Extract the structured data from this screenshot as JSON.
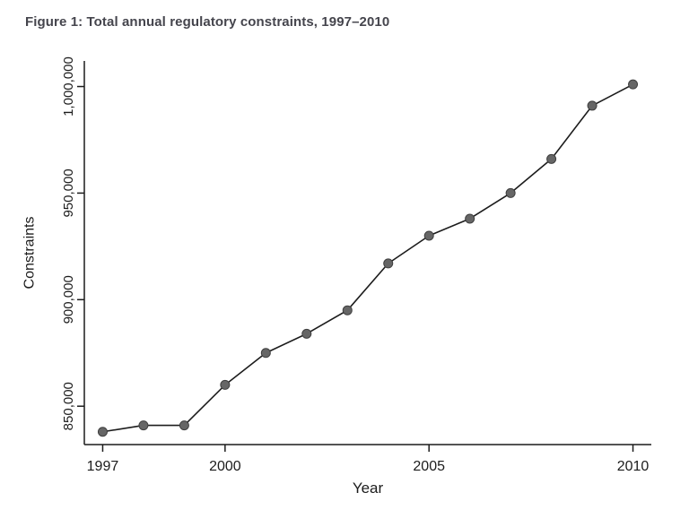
{
  "page": {
    "background": "#ffffff"
  },
  "chart_data": {
    "type": "line",
    "title": "Figure 1: Total annual regulatory constraints, 1997–2010",
    "xlabel": "Year",
    "ylabel": "Constraints",
    "series_name": "Total annual regulatory constraints",
    "x": [
      1997,
      1998,
      1999,
      2000,
      2001,
      2002,
      2003,
      2004,
      2005,
      2006,
      2007,
      2008,
      2009,
      2010
    ],
    "values": [
      838000,
      841000,
      841000,
      860000,
      875000,
      884000,
      895000,
      917000,
      930000,
      938000,
      950000,
      966000,
      991000,
      1001000
    ],
    "xlim": [
      1996.55,
      2010.45
    ],
    "ylim": [
      832000,
      1012000
    ],
    "xticks": [
      1997,
      2000,
      2005,
      2010
    ],
    "xtick_labels": [
      "1997",
      "2000",
      "2005",
      "2010"
    ],
    "yticks": [
      850000,
      900000,
      950000,
      1000000
    ],
    "ytick_labels": [
      "850,000",
      "900,000",
      "950,000",
      "1,000,000"
    ],
    "grid": false,
    "legend": "none",
    "colors": {
      "line": "#1c1c1c",
      "marker": "#666666",
      "marker_stroke": "#3f3f3f",
      "axis": "#1c1c1c",
      "text": "#1c1c1c",
      "title": "#45454d"
    }
  }
}
